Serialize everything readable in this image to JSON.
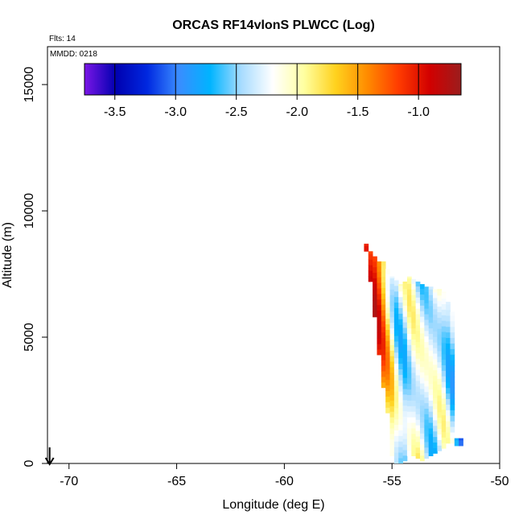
{
  "chart_data": {
    "type": "heatmap",
    "title": "ORCAS RF14vlonS PLWCC (Log)",
    "xlabel": "Longitude (deg E)",
    "ylabel": "Altitude (m)",
    "xlim": [
      -71,
      -50
    ],
    "ylim": [
      0,
      16500
    ],
    "x_ticks": [
      -70,
      -65,
      -60,
      -55,
      -50
    ],
    "y_ticks": [
      0,
      5000,
      10000,
      15000
    ],
    "flights_note": "Flts: 14",
    "mmdd_note": "MMDD: 0218",
    "colorbar": {
      "range": [
        -3.75,
        -0.65
      ],
      "ticks": [
        -3.5,
        -3.0,
        -2.5,
        -2.0,
        -1.5,
        -1.0
      ],
      "colors": [
        "#7b16e6",
        "#0000b0",
        "#0028e0",
        "#3a8cff",
        "#00b4ff",
        "#a8dcff",
        "#ffffff",
        "#ffffa0",
        "#ffd21e",
        "#ff8c00",
        "#ff3c00",
        "#d20000",
        "#9b1d1d"
      ]
    },
    "wind_arrow_lon": -70.9,
    "columns": [
      {
        "lon": -56.2,
        "alt_min": 8400,
        "alt_max": 8700,
        "value": -0.85
      },
      {
        "lon": -56.0,
        "alt_min": 7200,
        "alt_max": 8400,
        "value": -1.0
      },
      {
        "lon": -55.8,
        "alt_min": 5800,
        "alt_max": 8200,
        "value": -1.05
      },
      {
        "lon": -55.6,
        "alt_min": 4300,
        "alt_max": 8000,
        "value": -1.3
      },
      {
        "lon": -55.4,
        "alt_min": 3000,
        "alt_max": 8000,
        "value": -1.6
      },
      {
        "lon": -55.2,
        "alt_min": 2000,
        "alt_max": 7700,
        "value": -1.85
      },
      {
        "lon": -55.0,
        "alt_min": 300,
        "alt_max": 7400,
        "value": -2.0
      },
      {
        "lon": -54.8,
        "alt_min": 0,
        "alt_max": 7300,
        "value": -2.2
      },
      {
        "lon": -54.6,
        "alt_min": 0,
        "alt_max": 7100,
        "value": -2.3
      },
      {
        "lon": -54.4,
        "alt_min": 100,
        "alt_max": 7200,
        "value": -2.4
      },
      {
        "lon": -54.2,
        "alt_min": 300,
        "alt_max": 7400,
        "value": -2.35
      },
      {
        "lon": -54.0,
        "alt_min": 300,
        "alt_max": 7300,
        "value": -2.3
      },
      {
        "lon": -53.8,
        "alt_min": 200,
        "alt_max": 7200,
        "value": -2.25
      },
      {
        "lon": -53.6,
        "alt_min": 100,
        "alt_max": 7100,
        "value": -2.2
      },
      {
        "lon": -53.4,
        "alt_min": 200,
        "alt_max": 7000,
        "value": -2.2
      },
      {
        "lon": -53.2,
        "alt_min": 300,
        "alt_max": 7000,
        "value": -2.25
      },
      {
        "lon": -53.0,
        "alt_min": 400,
        "alt_max": 6900,
        "value": -2.3
      },
      {
        "lon": -52.8,
        "alt_min": 500,
        "alt_max": 6900,
        "value": -2.35
      },
      {
        "lon": -52.6,
        "alt_min": 600,
        "alt_max": 6800,
        "value": -2.4
      },
      {
        "lon": -52.4,
        "alt_min": 800,
        "alt_max": 6400,
        "value": -2.45
      },
      {
        "lon": -52.2,
        "alt_min": 800,
        "alt_max": 6000,
        "value": -2.4
      },
      {
        "lon": -52.0,
        "alt_min": 700,
        "alt_max": 1000,
        "value": -2.6
      },
      {
        "lon": -51.8,
        "alt_min": 700,
        "alt_max": 1000,
        "value": -2.7
      }
    ]
  }
}
